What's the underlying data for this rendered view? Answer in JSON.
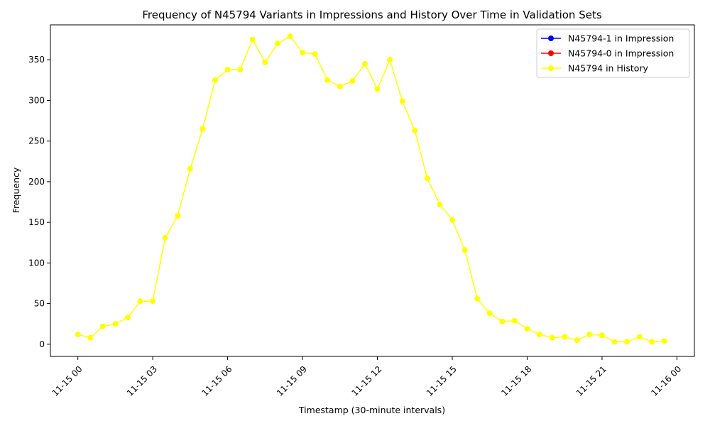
{
  "chart_data": {
    "type": "line",
    "title": "Frequency of N45794 Variants in Impressions and History Over Time in Validation Sets",
    "xlabel": "Timestamp (30-minute intervals)",
    "ylabel": "Frequency",
    "x_tick_labels": [
      "11-15 00",
      "11-15 03",
      "11-15 06",
      "11-15 09",
      "11-15 12",
      "11-15 15",
      "11-15 18",
      "11-15 21",
      "11-16 00"
    ],
    "y_ticks": [
      0,
      50,
      100,
      150,
      200,
      250,
      300,
      350
    ],
    "xlim_hours": [
      -1.1,
      24.7
    ],
    "ylim": [
      -15,
      393
    ],
    "grid": false,
    "legend_position": "top-right",
    "series": [
      {
        "name": "N45794-1 in Impression",
        "color": "#0000ff",
        "marker": "circle",
        "values": []
      },
      {
        "name": "N45794-0 in Impression",
        "color": "#ff0000",
        "marker": "circle",
        "values": []
      },
      {
        "name": "N45794 in History",
        "color": "#ffff00",
        "marker": "circle",
        "values": [
          12,
          8,
          22,
          25,
          33,
          53,
          53,
          131,
          158,
          216,
          265,
          325,
          338,
          338,
          375,
          347,
          370,
          379,
          359,
          357,
          325,
          317,
          324,
          345,
          314,
          350,
          299,
          263,
          204,
          172,
          153,
          116,
          56,
          38,
          28,
          29,
          19,
          12,
          8,
          9,
          5,
          12,
          11,
          3,
          3,
          9,
          3,
          4
        ]
      }
    ],
    "x_start": "11-15 00",
    "x_step_hours": 0.5
  }
}
